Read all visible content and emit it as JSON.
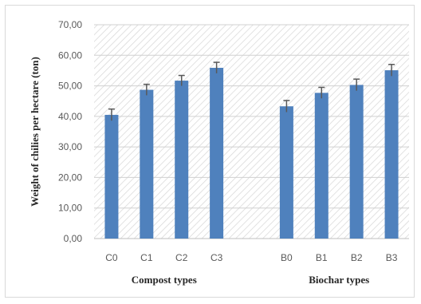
{
  "chart_data": {
    "type": "bar",
    "ylabel": "Weight of chilies per hectare (ton)",
    "ylim": [
      0,
      70
    ],
    "yticks": [
      "0,00",
      "10,00",
      "20,00",
      "30,00",
      "40,00",
      "50,00",
      "60,00",
      "70,00"
    ],
    "grid": true,
    "bar_color": "#4f81bd",
    "groups": [
      {
        "label": "Compost types",
        "categories": [
          "C0",
          "C1",
          "C2",
          "C3"
        ],
        "values": [
          40.5,
          48.7,
          51.7,
          55.9
        ],
        "errors": [
          1.9,
          1.8,
          1.7,
          1.8
        ]
      },
      {
        "label": "Biochar types",
        "categories": [
          "B0",
          "B1",
          "B2",
          "B3"
        ],
        "values": [
          43.3,
          47.7,
          50.3,
          55.1
        ],
        "errors": [
          1.9,
          1.8,
          1.9,
          1.9
        ]
      }
    ]
  }
}
